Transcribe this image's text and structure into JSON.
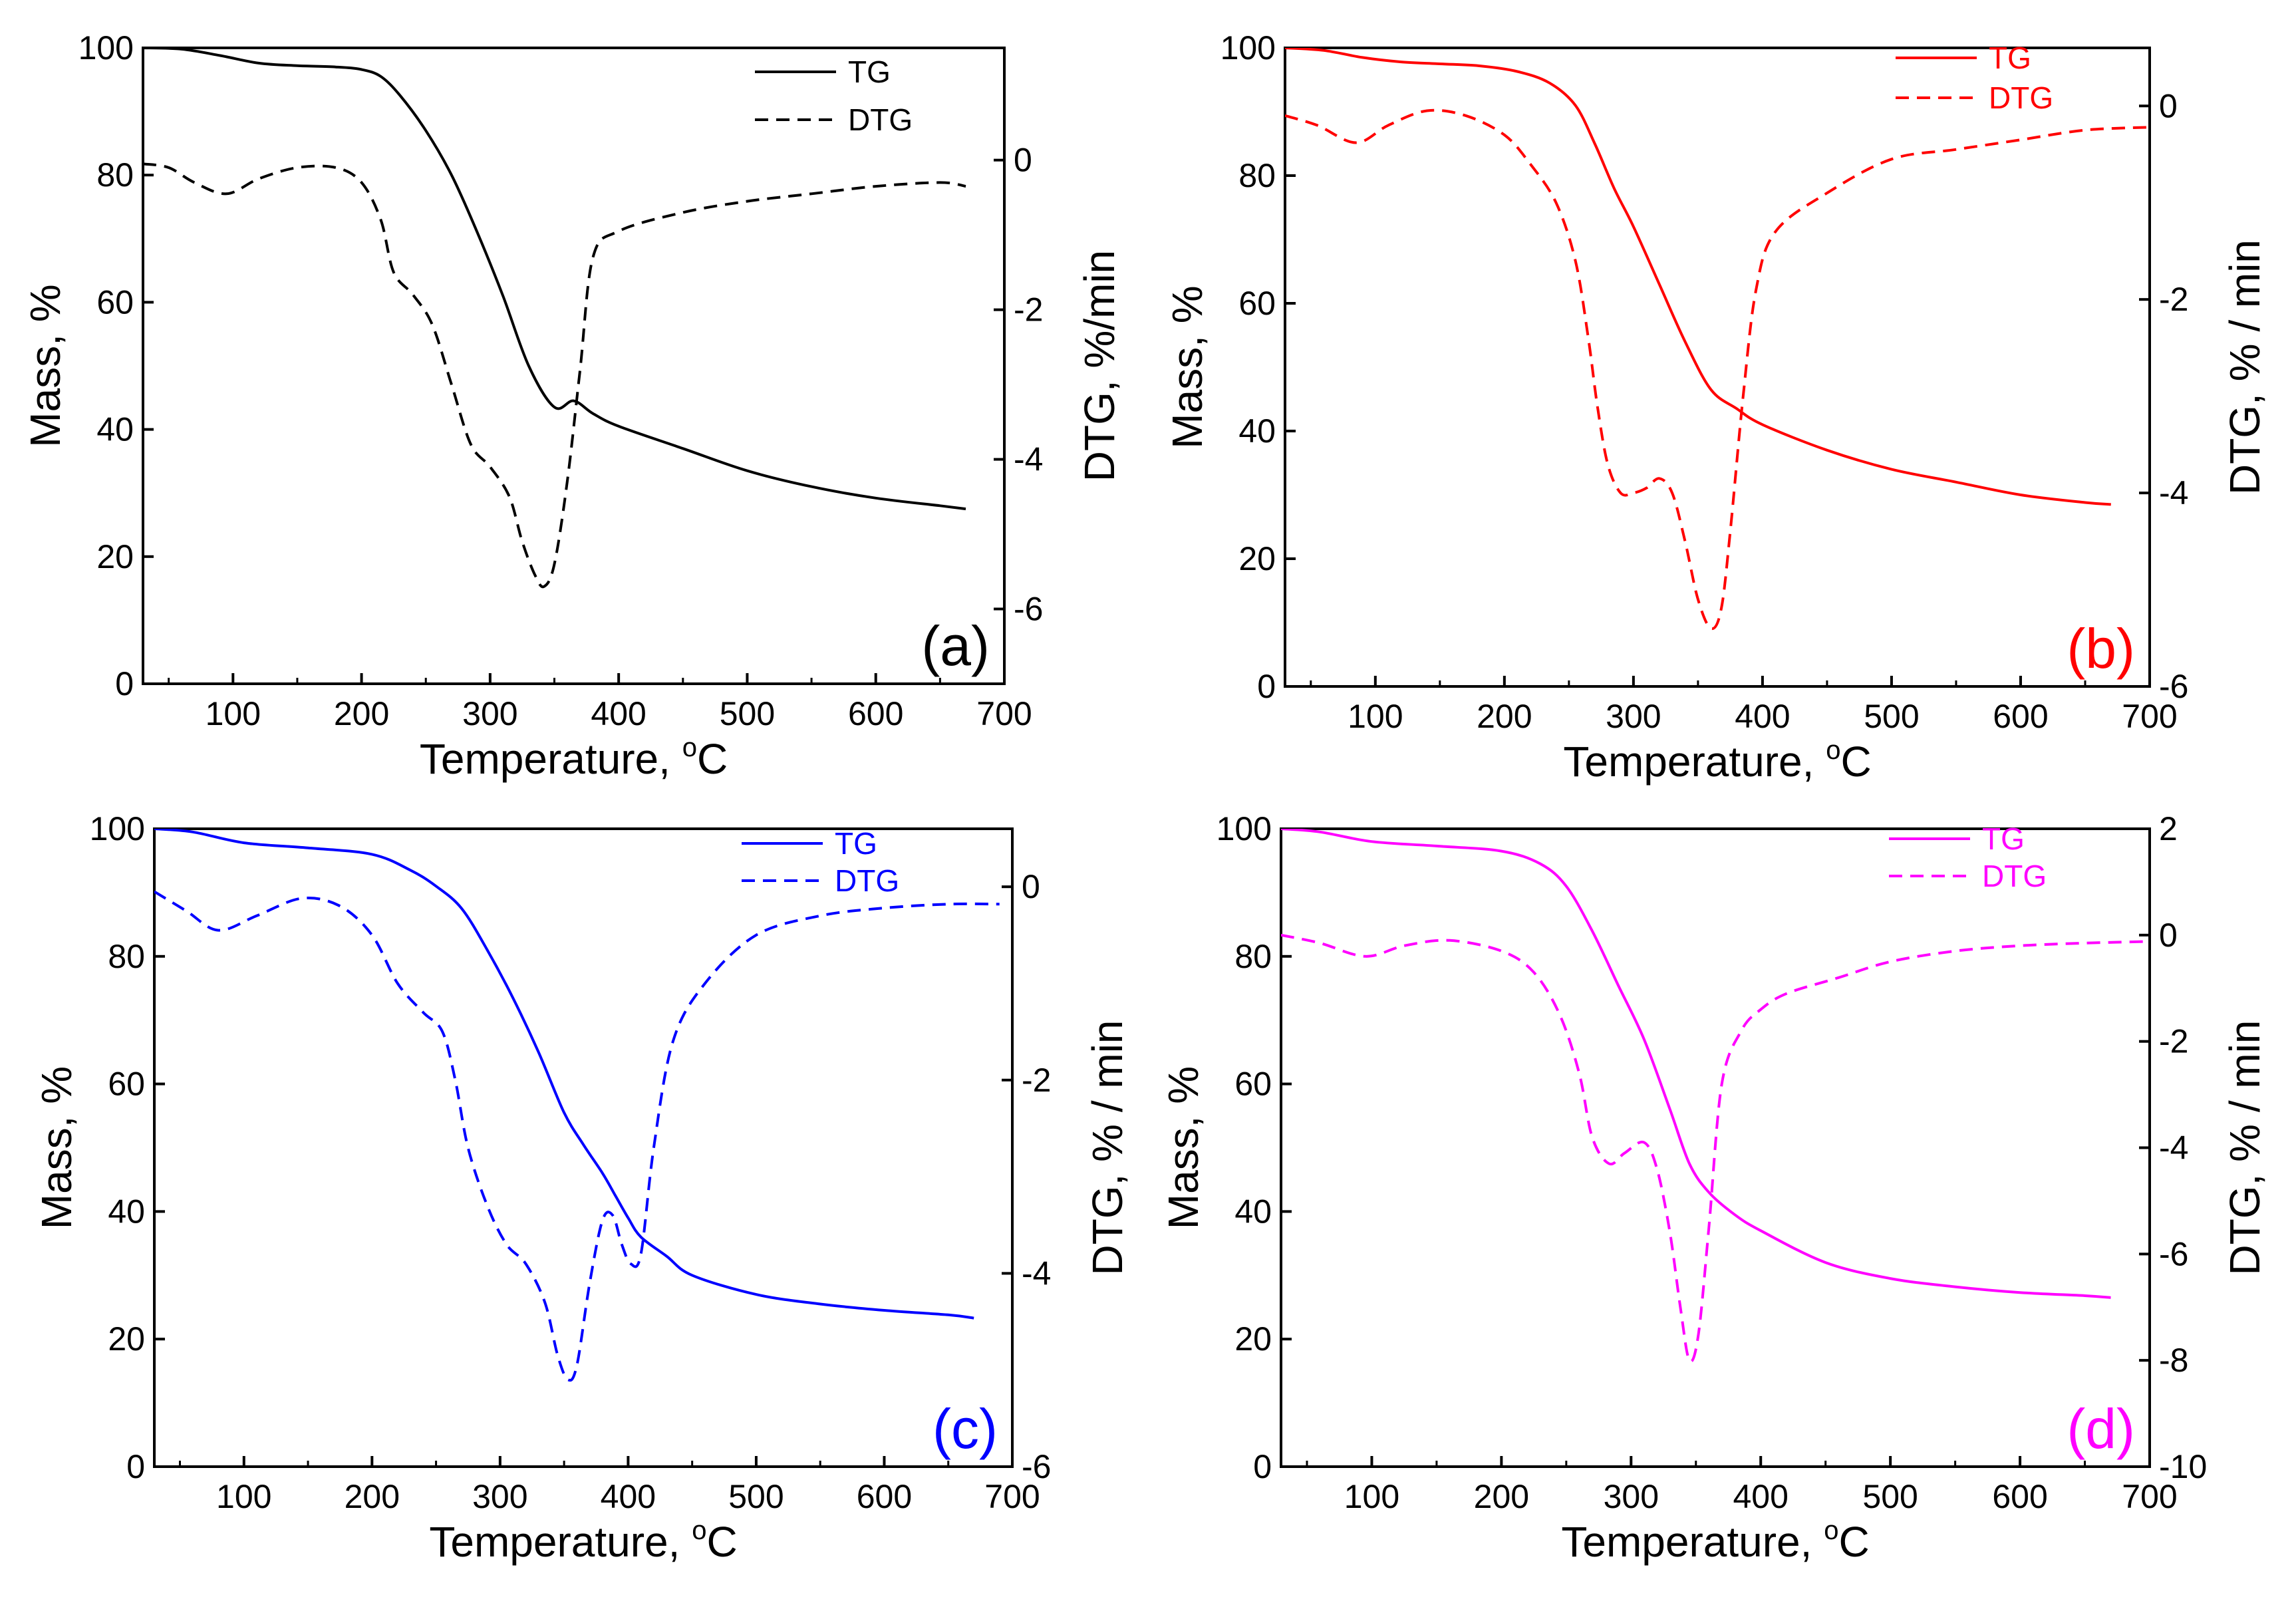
{
  "chart_data": [
    {
      "id": "a",
      "type": "line",
      "panel_label": "(a)",
      "color": "#000000",
      "xlabel": "Temperature, °C",
      "ylabel": "Mass, %",
      "y2label": "DTG, %/min",
      "xlim": [
        30,
        700
      ],
      "xticks": [
        100,
        200,
        300,
        400,
        500,
        600,
        700
      ],
      "ylim": [
        0,
        100
      ],
      "yticks": [
        0,
        20,
        40,
        60,
        80,
        100
      ],
      "y2lim": [
        -7,
        1.5
      ],
      "y2ticks": [
        -6,
        -4,
        -2,
        0
      ],
      "legend": [
        "TG",
        "DTG"
      ],
      "legend_position": "top-right",
      "series": [
        {
          "name": "TG",
          "axis": "left",
          "style": "solid",
          "x": [
            30,
            60,
            90,
            120,
            150,
            180,
            200,
            215,
            230,
            250,
            270,
            290,
            310,
            330,
            350,
            365,
            380,
            400,
            450,
            500,
            550,
            600,
            650,
            670
          ],
          "y": [
            100,
            99.8,
            98.8,
            97.6,
            97.2,
            97.0,
            96.6,
            95.5,
            92.5,
            87.0,
            80.0,
            71.0,
            61.0,
            50.0,
            43.5,
            44.5,
            42.5,
            40.5,
            37.0,
            33.5,
            31.0,
            29.2,
            28.0,
            27.5
          ]
        },
        {
          "name": "DTG",
          "axis": "right",
          "style": "dashed",
          "x": [
            30,
            50,
            70,
            95,
            120,
            150,
            180,
            200,
            215,
            225,
            240,
            255,
            270,
            285,
            300,
            315,
            325,
            335,
            342,
            350,
            360,
            370,
            380,
            400,
            450,
            500,
            550,
            600,
            650,
            670
          ],
          "y": [
            -0.05,
            -0.1,
            -0.3,
            -0.45,
            -0.25,
            -0.1,
            -0.1,
            -0.3,
            -0.8,
            -1.5,
            -1.8,
            -2.2,
            -3.0,
            -3.8,
            -4.1,
            -4.5,
            -5.1,
            -5.55,
            -5.7,
            -5.4,
            -4.3,
            -2.8,
            -1.3,
            -0.95,
            -0.7,
            -0.55,
            -0.45,
            -0.35,
            -0.3,
            -0.35
          ]
        }
      ]
    },
    {
      "id": "b",
      "type": "line",
      "panel_label": "(b)",
      "color": "#ff0000",
      "xlabel": "Temperature, °C",
      "ylabel": "Mass, %",
      "y2label": "DTG, % / min",
      "xlim": [
        30,
        700
      ],
      "xticks": [
        100,
        200,
        300,
        400,
        500,
        600,
        700
      ],
      "ylim": [
        0,
        100
      ],
      "yticks": [
        0,
        20,
        40,
        60,
        80,
        100
      ],
      "y2lim": [
        -6,
        0.6
      ],
      "y2ticks": [
        -6,
        -4,
        -2,
        0
      ],
      "legend": [
        "TG",
        "DTG"
      ],
      "legend_position": "top-right",
      "series": [
        {
          "name": "TG",
          "axis": "left",
          "style": "solid",
          "x": [
            30,
            60,
            90,
            120,
            150,
            180,
            210,
            235,
            255,
            270,
            285,
            300,
            320,
            340,
            360,
            380,
            400,
            450,
            500,
            550,
            600,
            650,
            670
          ],
          "y": [
            100,
            99.6,
            98.5,
            97.8,
            97.5,
            97.2,
            96.3,
            94.5,
            91.0,
            85.0,
            78.0,
            72.0,
            63.0,
            54.0,
            46.5,
            43.5,
            41.0,
            37.0,
            34.0,
            32.0,
            30.0,
            28.8,
            28.5
          ]
        },
        {
          "name": "DTG",
          "axis": "right",
          "style": "dashed",
          "x": [
            30,
            55,
            85,
            110,
            140,
            170,
            200,
            220,
            240,
            255,
            265,
            272,
            280,
            290,
            300,
            310,
            320,
            330,
            340,
            350,
            360,
            368,
            375,
            385,
            395,
            410,
            450,
            500,
            550,
            600,
            650,
            700
          ],
          "y": [
            -0.1,
            -0.2,
            -0.38,
            -0.2,
            -0.05,
            -0.1,
            -0.3,
            -0.6,
            -1.0,
            -1.6,
            -2.4,
            -3.1,
            -3.7,
            -4.0,
            -4.0,
            -3.95,
            -3.85,
            -4.0,
            -4.5,
            -5.1,
            -5.4,
            -5.2,
            -4.4,
            -3.0,
            -1.9,
            -1.3,
            -0.9,
            -0.55,
            -0.45,
            -0.35,
            -0.25,
            -0.22
          ]
        }
      ]
    },
    {
      "id": "c",
      "type": "line",
      "panel_label": "(c)",
      "color": "#0000ff",
      "xlabel": "Temperature, °C",
      "ylabel": "Mass, %",
      "y2label": "DTG, % / min",
      "xlim": [
        30,
        700
      ],
      "xticks": [
        100,
        200,
        300,
        400,
        500,
        600,
        700
      ],
      "ylim": [
        0,
        100
      ],
      "yticks": [
        0,
        20,
        40,
        60,
        80,
        100
      ],
      "y2lim": [
        -6,
        0.6
      ],
      "y2ticks": [
        -6,
        -4,
        -2,
        0
      ],
      "legend": [
        "TG",
        "DTG"
      ],
      "legend_position": "top-right",
      "series": [
        {
          "name": "TG",
          "axis": "left",
          "style": "solid",
          "x": [
            30,
            60,
            100,
            150,
            200,
            230,
            250,
            270,
            290,
            310,
            330,
            350,
            365,
            380,
            390,
            400,
            410,
            430,
            450,
            500,
            550,
            600,
            650,
            670
          ],
          "y": [
            100,
            99.5,
            97.8,
            97.0,
            96.0,
            93.5,
            91.0,
            87.5,
            81.0,
            73.5,
            65.0,
            55.5,
            50.5,
            46.0,
            42.5,
            39.0,
            36.0,
            33.0,
            30.0,
            27.0,
            25.5,
            24.5,
            23.8,
            23.3
          ]
        },
        {
          "name": "DTG",
          "axis": "right",
          "style": "dashed",
          "x": [
            30,
            55,
            80,
            110,
            145,
            175,
            200,
            220,
            240,
            255,
            265,
            275,
            290,
            305,
            320,
            335,
            345,
            353,
            360,
            370,
            380,
            388,
            395,
            402,
            410,
            420,
            435,
            460,
            500,
            550,
            600,
            650,
            690
          ],
          "y": [
            -0.05,
            -0.25,
            -0.45,
            -0.3,
            -0.12,
            -0.2,
            -0.5,
            -1.0,
            -1.3,
            -1.5,
            -2.0,
            -2.7,
            -3.3,
            -3.7,
            -3.9,
            -4.3,
            -4.85,
            -5.1,
            -4.95,
            -4.1,
            -3.45,
            -3.4,
            -3.7,
            -3.9,
            -3.8,
            -2.7,
            -1.6,
            -1.0,
            -0.5,
            -0.3,
            -0.22,
            -0.18,
            -0.18
          ]
        }
      ]
    },
    {
      "id": "d",
      "type": "line",
      "panel_label": "(d)",
      "color": "#ff00ff",
      "xlabel": "Temperature, °C",
      "ylabel": "Mass, %",
      "y2label": "DTG, % / min",
      "xlim": [
        30,
        700
      ],
      "xticks": [
        100,
        200,
        300,
        400,
        500,
        600,
        700
      ],
      "ylim": [
        0,
        100
      ],
      "yticks": [
        0,
        20,
        40,
        60,
        80,
        100
      ],
      "y2lim": [
        -10,
        2
      ],
      "y2ticks": [
        -10,
        -8,
        -6,
        -4,
        -2,
        0,
        2
      ],
      "legend": [
        "TG",
        "DTG"
      ],
      "legend_position": "top-right",
      "series": [
        {
          "name": "TG",
          "axis": "left",
          "style": "solid",
          "x": [
            30,
            60,
            100,
            150,
            200,
            230,
            250,
            270,
            290,
            310,
            330,
            345,
            360,
            380,
            400,
            450,
            500,
            550,
            600,
            650,
            670
          ],
          "y": [
            100,
            99.5,
            98.0,
            97.3,
            96.5,
            94.5,
            91.0,
            84.0,
            75.5,
            67.0,
            56.0,
            47.5,
            43.0,
            39.5,
            37.0,
            32.0,
            29.5,
            28.2,
            27.3,
            26.8,
            26.5
          ]
        },
        {
          "name": "DTG",
          "axis": "right",
          "style": "dashed",
          "x": [
            30,
            60,
            95,
            125,
            160,
            200,
            225,
            245,
            260,
            270,
            283,
            295,
            310,
            320,
            330,
            338,
            345,
            352,
            360,
            370,
            385,
            400,
            420,
            460,
            500,
            550,
            600,
            650,
            700
          ],
          "y": [
            0,
            -0.15,
            -0.4,
            -0.2,
            -0.1,
            -0.3,
            -0.7,
            -1.5,
            -2.6,
            -3.8,
            -4.3,
            -4.1,
            -3.9,
            -4.4,
            -5.6,
            -7.0,
            -8.0,
            -7.5,
            -5.5,
            -2.8,
            -1.8,
            -1.4,
            -1.1,
            -0.8,
            -0.5,
            -0.3,
            -0.2,
            -0.15,
            -0.12
          ]
        }
      ]
    }
  ]
}
